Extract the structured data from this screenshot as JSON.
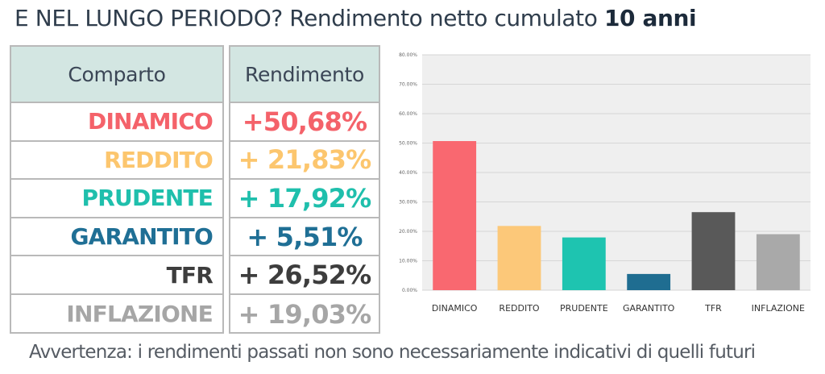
{
  "title": {
    "main": "E NEL LUNGO PERIODO? Rendimento netto cumulato",
    "emphasis": "10 anni"
  },
  "table": {
    "header_comparto": "Comparto",
    "header_rendimento": "Rendimento",
    "rows": [
      {
        "comparto": "DINAMICO",
        "rendimento": "+50,68%",
        "color": "#f4626a"
      },
      {
        "comparto": "REDDITO",
        "rendimento": "+ 21,83%",
        "color": "#fcc66e"
      },
      {
        "comparto": "PRUDENTE",
        "rendimento": "+ 17,92%",
        "color": "#1fbfac"
      },
      {
        "comparto": "GARANTITO",
        "rendimento": "+ 5,51%",
        "color": "#1f6f95"
      },
      {
        "comparto": "TFR",
        "rendimento": "+ 26,52%",
        "color": "#3d3d3d"
      },
      {
        "comparto": "INFLAZIONE",
        "rendimento": "+ 19,03%",
        "color": "#a6a6a6"
      }
    ]
  },
  "chart_data": {
    "type": "bar",
    "categories": [
      "DINAMICO",
      "REDDITO",
      "PRUDENTE",
      "GARANTITO",
      "TFR",
      "INFLAZIONE"
    ],
    "values": [
      50.68,
      21.83,
      17.92,
      5.51,
      26.52,
      19.03
    ],
    "colors": [
      "#f96870",
      "#fcc879",
      "#1ec4b0",
      "#1f6d91",
      "#595959",
      "#a9a9a9"
    ],
    "ylim": [
      0,
      80
    ],
    "yticks": [
      0,
      10,
      20,
      30,
      40,
      50,
      60,
      70,
      80
    ],
    "ytick_labels": [
      "0.00%",
      "10.00%",
      "20.00%",
      "30.00%",
      "40.00%",
      "50.00%",
      "60.00%",
      "70.00%",
      "80.00%"
    ],
    "grid": true,
    "background": "#efefef"
  },
  "footer": "Avvertenza: i rendimenti passati non sono necessariamente indicativi di quelli futuri"
}
